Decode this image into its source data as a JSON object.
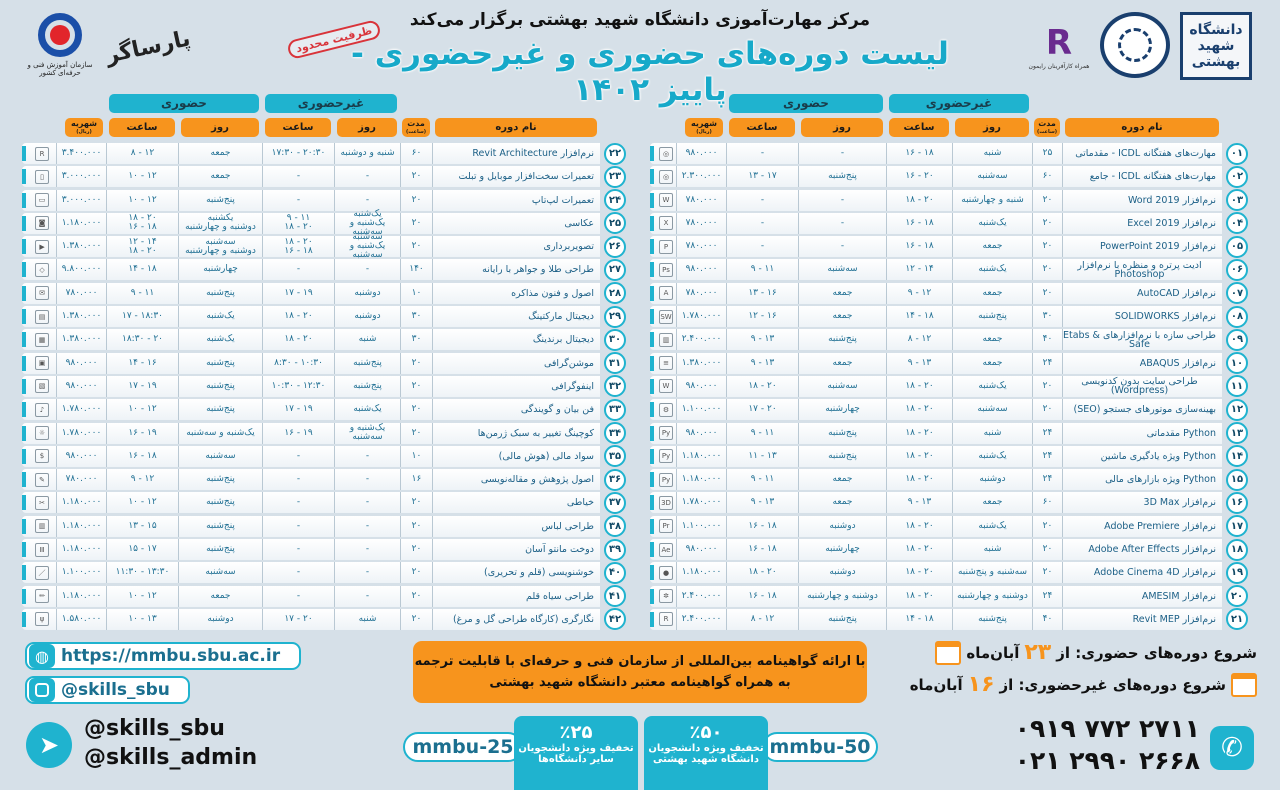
{
  "header": {
    "subtitle": "مرکز مهارت‌آموزی دانشگاه شهید بهشتی برگزار می‌کند",
    "title": "لیست دوره‌های حضوری و غیرحضوری - پاییز ۱۴۰۲",
    "stamp": "ظرفیت محدود",
    "logos": {
      "tvto_caption": "سازمان آموزش فنی و حرفه‌ای کشور",
      "parsa": "پارساگر",
      "raymon_caption": "همراه کارآفرینان رایمون",
      "sbu": "دانشگاه شهید بهشتی"
    }
  },
  "table_headers": {
    "in_person": "حضوری",
    "online": "غیرحضوری",
    "name": "نام دوره",
    "duration": "مدت",
    "duration_unit": "(ساعت)",
    "day": "روز",
    "hour": "ساعت",
    "fee": "شهریه",
    "fee_unit": "(ریال)"
  },
  "colors": {
    "teal": "#1fb3cf",
    "orange": "#f7941d",
    "text": "#1f6f93"
  },
  "courses_right": [
    [
      "۰۱",
      "مهارت‌های هفتگانه ICDL - مقدماتی",
      "۲۵",
      "شنبه",
      "۱۶ - ۱۸",
      "-",
      "-",
      "۹۸۰.۰۰۰",
      "icdl-icon"
    ],
    [
      "۰۲",
      "مهارت‌های هفتگانه ICDL - جامع",
      "۶۰",
      "سه‌شنبه",
      "۱۶ - ۲۰",
      "پنج‌شنبه",
      "۱۳ - ۱۷",
      "۲.۳۰۰.۰۰۰",
      "icdl-icon"
    ],
    [
      "۰۳",
      "نرم‌افزار Word 2019",
      "۲۰",
      "شنبه و چهارشنبه",
      "۱۸ - ۲۰",
      "-",
      "-",
      "۷۸۰.۰۰۰",
      "word-icon"
    ],
    [
      "۰۴",
      "نرم‌افزار Excel 2019",
      "۲۰",
      "یک‌شنبه",
      "۱۶ - ۱۸",
      "-",
      "-",
      "۷۸۰.۰۰۰",
      "excel-icon"
    ],
    [
      "۰۵",
      "نرم‌افزار PowerPoint 2019",
      "۲۰",
      "جمعه",
      "۱۶ - ۱۸",
      "-",
      "-",
      "۷۸۰.۰۰۰",
      "powerpoint-icon"
    ],
    [
      "۰۶",
      "ادیت پرتره و منظره با نرم‌افزار Photoshop",
      "۲۰",
      "یک‌شنبه",
      "۱۲ - ۱۴",
      "سه‌شنبه",
      "۹ - ۱۱",
      "۹۸۰.۰۰۰",
      "photoshop-icon"
    ],
    [
      "۰۷",
      "نرم‌افزار AutoCAD",
      "۲۰",
      "جمعه",
      "۹ - ۱۲",
      "جمعه",
      "۱۳ - ۱۶",
      "۷۸۰.۰۰۰",
      "autocad-icon"
    ],
    [
      "۰۸",
      "نرم‌افزار SOLIDWORKS",
      "۳۰",
      "پنج‌شنبه",
      "۱۴ - ۱۸",
      "جمعه",
      "۱۲ - ۱۶",
      "۱.۷۸۰.۰۰۰",
      "solidworks-icon"
    ],
    [
      "۰۹",
      "طراحی سازه با نرم‌افزارهای Etabs & Safe",
      "۴۰",
      "جمعه",
      "۸ - ۱۲",
      "پنج‌شنبه",
      "۹ - ۱۳",
      "۲.۴۰۰.۰۰۰",
      "building-icon"
    ],
    [
      "۱۰",
      "نرم‌افزار ABAQUS",
      "۲۴",
      "جمعه",
      "۹ - ۱۳",
      "جمعه",
      "۹ - ۱۳",
      "۱.۳۸۰.۰۰۰",
      "abaqus-icon"
    ],
    [
      "۱۱",
      "طراحی سایت بدون کدنویسی (Wordpress)",
      "۲۰",
      "یک‌شنبه",
      "۱۸ - ۲۰",
      "سه‌شنبه",
      "۱۸ - ۲۰",
      "۹۸۰.۰۰۰",
      "wordpress-icon"
    ],
    [
      "۱۲",
      "بهینه‌سازی موتورهای جستجو (SEO)",
      "۲۰",
      "سه‌شنبه",
      "۱۸ - ۲۰",
      "چهارشنبه",
      "۱۷ - ۲۰",
      "۱.۱۰۰.۰۰۰",
      "seo-icon"
    ],
    [
      "۱۳",
      "Python مقدماتی",
      "۲۴",
      "شنبه",
      "۱۸ - ۲۰",
      "پنج‌شنبه",
      "۹ - ۱۱",
      "۹۸۰.۰۰۰",
      "python-icon"
    ],
    [
      "۱۴",
      "Python ویژه یادگیری ماشین",
      "۲۴",
      "یک‌شنبه",
      "۱۸ - ۲۰",
      "پنج‌شنبه",
      "۱۱ - ۱۳",
      "۱.۱۸۰.۰۰۰",
      "python-icon"
    ],
    [
      "۱۵",
      "Python ویژه بازارهای مالی",
      "۲۴",
      "دوشنبه",
      "۱۸ - ۲۰",
      "جمعه",
      "۹ - ۱۱",
      "۱.۱۸۰.۰۰۰",
      "python-icon"
    ],
    [
      "۱۶",
      "نرم‌افزار 3D Max",
      "۶۰",
      "جمعه",
      "۹ - ۱۳",
      "جمعه",
      "۹ - ۱۳",
      "۱.۷۸۰.۰۰۰",
      "3dmax-icon"
    ],
    [
      "۱۷",
      "نرم‌افزار Adobe Premiere",
      "۲۰",
      "یک‌شنبه",
      "۱۸ - ۲۰",
      "دوشنبه",
      "۱۶ - ۱۸",
      "۱.۱۰۰.۰۰۰",
      "premiere-icon"
    ],
    [
      "۱۸",
      "نرم‌افزار Adobe After Effects",
      "۲۰",
      "شنبه",
      "۱۸ - ۲۰",
      "چهارشنبه",
      "۱۶ - ۱۸",
      "۹۸۰.۰۰۰",
      "after-effects-icon"
    ],
    [
      "۱۹",
      "نرم‌افزار Adobe Cinema 4D",
      "۲۰",
      "سه‌شنبه و پنج‌شنبه",
      "۱۸ - ۲۰",
      "دوشنبه",
      "۱۸ - ۲۰",
      "۱.۱۸۰.۰۰۰",
      "cinema4d-icon"
    ],
    [
      "۲۰",
      "نرم‌افزار AMESIM",
      "۲۴",
      "دوشنبه و چهارشنبه",
      "۱۸ - ۲۰",
      "دوشنبه و چهارشنبه",
      "۱۶ - ۱۸",
      "۲.۴۰۰.۰۰۰",
      "amesim-icon"
    ],
    [
      "۲۱",
      "نرم‌افزار Revit MEP",
      "۴۰",
      "پنج‌شنبه",
      "۱۴ - ۱۸",
      "پنج‌شنبه",
      "۸ - ۱۲",
      "۲.۴۰۰.۰۰۰",
      "revit-icon"
    ]
  ],
  "courses_left": [
    [
      "۲۲",
      "نرم‌افزار Revit Architecture",
      "۶۰",
      "شنبه و دوشنبه",
      "۱۷:۳۰ - ۲۰:۳۰",
      "جمعه",
      "۸ - ۱۲",
      "۳.۴۰۰.۰۰۰",
      "revit-icon"
    ],
    [
      "۲۳",
      "تعمیرات سخت‌افزار موبایل و تبلت",
      "۲۰",
      "-",
      "-",
      "جمعه",
      "۱۰ - ۱۲",
      "۳.۰۰۰.۰۰۰",
      "mobile-repair-icon"
    ],
    [
      "۲۴",
      "تعمیرات لپ‌تاپ",
      "۲۰",
      "-",
      "-",
      "پنج‌شنبه",
      "۱۰ - ۱۲",
      "۳.۰۰۰.۰۰۰",
      "laptop-icon"
    ],
    [
      "۲۵",
      "عکاسی",
      "۲۰",
      "یک‌شنبه\nیک‌شنبه و سه‌شنبه",
      "۹ - ۱۱\n۱۸ - ۲۰",
      "یکشنبه\nدوشنبه و چهارشنبه",
      "۱۸ - ۲۰\n۱۶ - ۱۸",
      "۱.۱۸۰.۰۰۰",
      "camera-icon"
    ],
    [
      "۲۶",
      "تصویربرداری",
      "۲۰",
      "سه‌شنبه\nیک‌شنبه و سه‌شنبه",
      "۱۸ - ۲۰\n۱۶ - ۱۸",
      "سه‌شنبه\nدوشنبه و چهارشنبه",
      "۱۲ - ۱۴\n۱۸ - ۲۰",
      "۱.۳۸۰.۰۰۰",
      "video-camera-icon"
    ],
    [
      "۲۷",
      "طراحی طلا و جواهر با رایانه",
      "۱۴۰",
      "-",
      "-",
      "چهارشنبه",
      "۱۴ - ۱۸",
      "۹.۸۰۰.۰۰۰",
      "jewelry-icon"
    ],
    [
      "۲۸",
      "اصول و فنون مذاکره",
      "۱۰",
      "دوشنبه",
      "۱۷ - ۱۹",
      "پنج‌شنبه",
      "۹ - ۱۱",
      "۷۸۰.۰۰۰",
      "negotiation-icon"
    ],
    [
      "۲۹",
      "دیجیتال مارکتینگ",
      "۳۰",
      "دوشنبه",
      "۱۸ - ۲۰",
      "یک‌شنبه",
      "۱۷ - ۱۸:۳۰",
      "۱.۳۸۰.۰۰۰",
      "marketing-icon"
    ],
    [
      "۳۰",
      "دیجیتال برندینگ",
      "۳۰",
      "شنبه",
      "۱۸ - ۲۰",
      "یک‌شنبه",
      "۱۸:۳۰ - ۲۰",
      "۱.۳۸۰.۰۰۰",
      "branding-icon"
    ],
    [
      "۳۱",
      "موشن‌گرافی",
      "۲۰",
      "پنج‌شنبه",
      "۸:۳۰ - ۱۰:۳۰",
      "پنج‌شنبه",
      "۱۴ - ۱۶",
      "۹۸۰.۰۰۰",
      "motion-graphics-icon"
    ],
    [
      "۳۲",
      "اینفوگرافی",
      "۲۰",
      "پنج‌شنبه",
      "۱۰:۳۰ - ۱۲:۳۰",
      "پنج‌شنبه",
      "۱۷ - ۱۹",
      "۹۸۰.۰۰۰",
      "infographic-icon"
    ],
    [
      "۳۳",
      "فن بیان و گویندگی",
      "۲۰",
      "یک‌شنبه",
      "۱۷ - ۱۹",
      "پنج‌شنبه",
      "۱۰ - ۱۲",
      "۱.۷۸۰.۰۰۰",
      "microphone-icon"
    ],
    [
      "۳۴",
      "کوچینگ تغییر به سبک ژرمن‌ها",
      "۲۰",
      "یک‌شنبه و سه‌شنبه",
      "۱۶ - ۱۹",
      "یک‌شنبه و سه‌شنبه",
      "۱۶ - ۱۹",
      "۱.۷۸۰.۰۰۰",
      "coaching-icon"
    ],
    [
      "۳۵",
      "سواد مالی (هوش مالی)",
      "۱۰",
      "-",
      "-",
      "سه‌شنبه",
      "۱۶ - ۱۸",
      "۹۸۰.۰۰۰",
      "finance-icon"
    ],
    [
      "۳۶",
      "اصول پژوهش و مقاله‌نویسی",
      "۱۶",
      "-",
      "-",
      "پنج‌شنبه",
      "۹ - ۱۲",
      "۷۸۰.۰۰۰",
      "article-icon"
    ],
    [
      "۳۷",
      "خیاطی",
      "۲۰",
      "-",
      "-",
      "پنج‌شنبه",
      "۱۰ - ۱۲",
      "۱.۱۸۰.۰۰۰",
      "sewing-icon"
    ],
    [
      "۳۸",
      "طراحی لباس",
      "۲۰",
      "-",
      "-",
      "پنج‌شنبه",
      "۱۳ - ۱۵",
      "۱.۱۸۰.۰۰۰",
      "clothing-design-icon"
    ],
    [
      "۳۹",
      "دوخت مانتو آسان",
      "۲۰",
      "-",
      "-",
      "پنج‌شنبه",
      "۱۵ - ۱۷",
      "۱.۱۸۰.۰۰۰",
      "wardrobe-icon"
    ],
    [
      "۴۰",
      "خوشنویسی (قلم و تحریری)",
      "۲۰",
      "-",
      "-",
      "سه‌شنبه",
      "۱۱:۳۰ - ۱۳:۳۰",
      "۱.۱۰۰.۰۰۰",
      "calligraphy-pen-icon"
    ],
    [
      "۴۱",
      "طراحی سیاه قلم",
      "۲۰",
      "-",
      "-",
      "جمعه",
      "۱۰ - ۱۲",
      "۱.۱۸۰.۰۰۰",
      "pencil-icon"
    ],
    [
      "۴۲",
      "نگارگری (کارگاه طراحی گل و مرغ)",
      "۲۰",
      "شنبه",
      "۱۷ - ۲۰",
      "دوشنبه",
      "۱۰ - ۱۳",
      "۱.۵۸۰.۰۰۰",
      "brushes-icon"
    ]
  ],
  "footer": {
    "website": "https://mmbu.sbu.ac.ir",
    "instagram": "@skills_sbu",
    "telegram_1": "@skills_sbu",
    "telegram_2": "@skills_admin",
    "certificate_line1": "با ارائه گواهینامه بین‌المللی از سازمان فنی و حرفه‌ای با قابلیت ترجمه",
    "certificate_line2": "به همراه گواهینامه معتبر دانشگاه شهید بهشتی",
    "discount_25": {
      "percent": "٪۲۵",
      "line1": "تخفیف ویژه دانشجویان",
      "line2": "سایر دانشگاه‌ها",
      "code": "mmbu-25"
    },
    "discount_50": {
      "percent": "٪۵۰",
      "line1": "تخفیف ویژه دانشجویان",
      "line2": "دانشگاه شهید بهشتی",
      "code": "mmbu-50"
    },
    "start_in_person": {
      "prefix": "شروع دوره‌های حضوری: از",
      "day": "۲۳",
      "month": "آبان‌ماه"
    },
    "start_online": {
      "prefix": "شروع دوره‌های غیرحضوری: از",
      "day": "۱۶",
      "month": "آبان‌ماه"
    },
    "phone_1": "۰۹۱۹ ۷۷۲ ۲۷۱۱",
    "phone_2": "۰۲۱ ۲۹۹۰ ۲۶۶۸"
  }
}
